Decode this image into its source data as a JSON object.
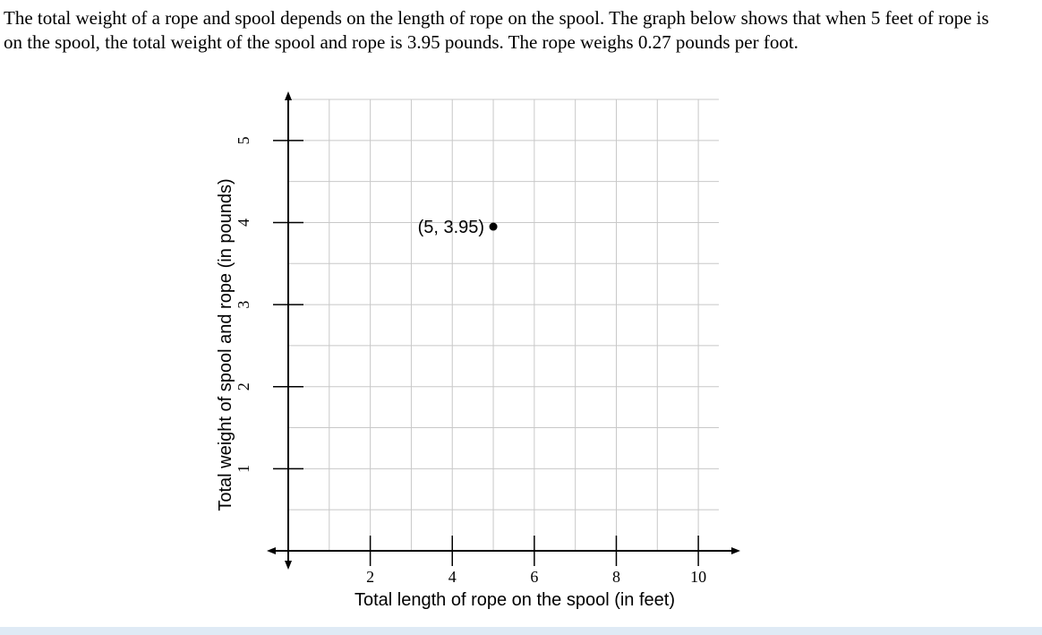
{
  "question": "The total weight of a rope and spool depends on the length of rope on the spool. The graph below shows that when 5 feet of rope is on the spool, the total weight of the spool and rope is 3.95 pounds. The rope weighs 0.27 pounds per foot.",
  "chart_data": {
    "type": "scatter",
    "x_label": "Total length of rope on the spool (in feet)",
    "y_label": "Total weight of spool and rope (in pounds)",
    "x": [
      5
    ],
    "values": [
      3.95
    ],
    "value_labels": [
      "(5, 3.95)"
    ],
    "color": "#000000",
    "xlim": [
      0,
      10.5
    ],
    "ylim": [
      0,
      5.5
    ],
    "xticks": [
      2,
      4,
      6,
      8,
      10
    ],
    "yticks": [
      1,
      2,
      3,
      4,
      5
    ],
    "grid": true
  }
}
